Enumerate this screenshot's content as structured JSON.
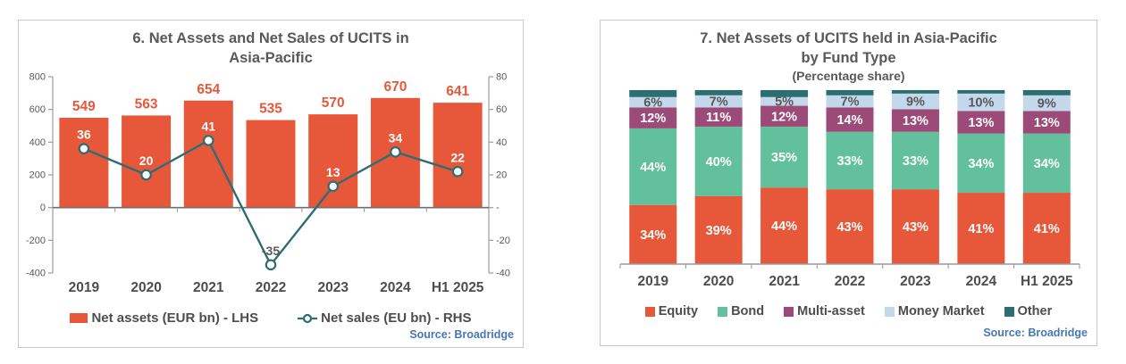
{
  "theme": {
    "title_color": "#595959",
    "axis_text_color": "#595959",
    "category_color": "#4D4D4D",
    "legend_color": "#4D4D4D",
    "source_color": "#4778B3",
    "panel_border_color": "#C9C9C9",
    "axis_line_color": "#9C9C9C",
    "zero_line_color": "#6E6E6E"
  },
  "chart_data": [
    {
      "type": "bar+line",
      "title_lines": [
        "6. Net Assets and Net Sales of UCITS in",
        "Asia-Pacific"
      ],
      "categories": [
        "2019",
        "2020",
        "2021",
        "2022",
        "2023",
        "2024",
        "H1 2025"
      ],
      "series": [
        {
          "name": "Net assets (EUR bn) - LHS",
          "type": "bar",
          "axis": "left",
          "values": [
            549,
            563,
            654,
            535,
            570,
            670,
            641
          ],
          "color": "#E7583B",
          "label_color": "#E7583B"
        },
        {
          "name": "Net sales (EU bn) - RHS",
          "type": "line",
          "axis": "right",
          "values": [
            36,
            20,
            41,
            -35,
            13,
            34,
            22
          ],
          "color": "#2F6D75",
          "marker": "open-circle",
          "label_colors": [
            "#FFFFFF",
            "#FFFFFF",
            "#FFFFFF",
            "#595959",
            "#FFFFFF",
            "#FFFFFF",
            "#FFFFFF"
          ]
        }
      ],
      "left_axis": {
        "min": -400,
        "max": 800,
        "tick_values": [
          800,
          600,
          400,
          200,
          0,
          -200,
          -400
        ],
        "tick_labels": [
          "800",
          "600",
          "400",
          "200",
          "0",
          "-200",
          "-400"
        ]
      },
      "right_axis": {
        "min": -40,
        "max": 80,
        "tick_values": [
          80,
          60,
          40,
          20,
          0,
          -20,
          -40
        ],
        "tick_labels": [
          "80",
          "60",
          "40",
          "20",
          "-",
          "-20",
          "-40"
        ]
      },
      "grid": false,
      "legend_position": "bottom",
      "source": "Source: Broadridge"
    },
    {
      "type": "stacked-bar",
      "title_lines": [
        "7. Net Assets of UCITS held in Asia-Pacific",
        "by Fund Type"
      ],
      "subtitle": "(Percentage share)",
      "categories": [
        "2019",
        "2020",
        "2021",
        "2022",
        "2023",
        "2024",
        "H1 2025"
      ],
      "series": [
        {
          "name": "Equity",
          "values": [
            34,
            39,
            44,
            43,
            43,
            41,
            41
          ],
          "color": "#E7583B",
          "label_color": "#FFFFFF",
          "labels_visible": true
        },
        {
          "name": "Bond",
          "values": [
            44,
            40,
            35,
            33,
            33,
            34,
            34
          ],
          "color": "#62C09C",
          "label_color": "#FFFFFF",
          "labels_visible": true
        },
        {
          "name": "Multi-asset",
          "values": [
            12,
            11,
            12,
            14,
            13,
            13,
            13
          ],
          "color": "#9C4B79",
          "label_color": "#FFFFFF",
          "labels_visible": true
        },
        {
          "name": "Money Market",
          "values": [
            6,
            7,
            5,
            7,
            9,
            10,
            9
          ],
          "color": "#C3D8EB",
          "label_color": "#595959",
          "labels_visible": true
        },
        {
          "name": "Other",
          "values": [
            4,
            3,
            4,
            3,
            2,
            2,
            3
          ],
          "color": "#2C6F72",
          "label_color": "#FFFFFF",
          "labels_visible": false
        }
      ],
      "axis": {
        "min": 0,
        "max": 100,
        "unit": "%",
        "ticks_visible": false
      },
      "grid": false,
      "legend_position": "bottom",
      "source": "Source: Broadridge"
    }
  ]
}
